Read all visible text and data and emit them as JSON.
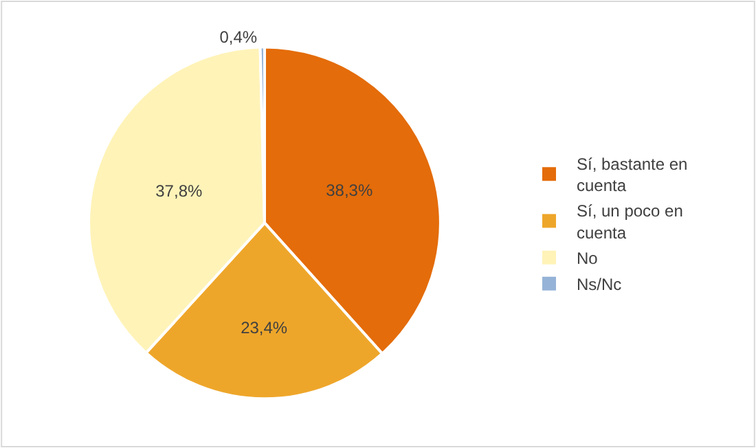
{
  "chart_data": {
    "type": "pie",
    "categories": [
      "Sí, bastante en cuenta",
      "Sí, un poco en cuenta",
      "No",
      "Ns/Nc"
    ],
    "values": [
      38.3,
      23.4,
      37.8,
      0.4
    ],
    "colors": [
      "#e46c0a",
      "#eea62a",
      "#fff3b8",
      "#95b3d7"
    ],
    "value_labels": [
      "38,3%",
      "23,4%",
      "37,8%",
      "0,4%"
    ],
    "legend": "right"
  }
}
